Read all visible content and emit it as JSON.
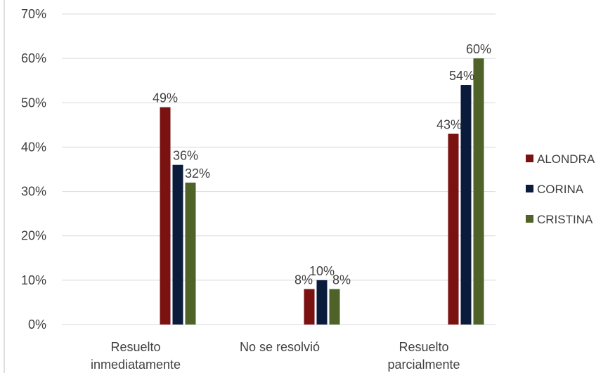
{
  "chart_data": {
    "type": "bar",
    "categories": [
      "Resuelto inmediatamente",
      "No se resolvió",
      "Resuelto parcialmente"
    ],
    "category_lines": [
      [
        "Resuelto",
        "inmediatamente"
      ],
      [
        "No se resolvió"
      ],
      [
        "Resuelto",
        "parcialmente"
      ]
    ],
    "series": [
      {
        "name": "ALONDRA",
        "values": [
          49,
          8,
          43
        ],
        "labels": [
          "49%",
          "8%",
          "43%"
        ],
        "color": "#7B1212"
      },
      {
        "name": "CORINA",
        "values": [
          36,
          10,
          54
        ],
        "labels": [
          "36%",
          "10%",
          "54%"
        ],
        "color": "#0B1B3C"
      },
      {
        "name": "CRISTINA",
        "values": [
          32,
          8,
          60
        ],
        "labels": [
          "32%",
          "8%",
          "60%"
        ],
        "color": "#4F6228"
      }
    ],
    "ylim": [
      0,
      70
    ],
    "yticks": [
      0,
      10,
      20,
      30,
      40,
      50,
      60,
      70
    ],
    "ytick_labels": [
      "0%",
      "10%",
      "20%",
      "30%",
      "40%",
      "50%",
      "60%",
      "70%"
    ],
    "grid": true,
    "legend_position": "right",
    "title": "",
    "xlabel": "",
    "ylabel": ""
  }
}
